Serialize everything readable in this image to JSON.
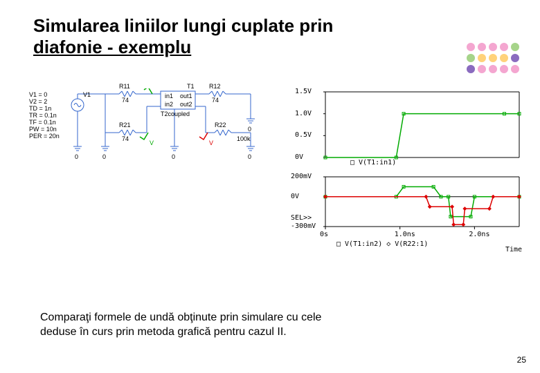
{
  "title_line1": "Simularea liniilor lungi cuplate prin",
  "title_line2": "diafonie - exemplu",
  "dots_colors": [
    "#f4a6d0",
    "#f4a6d0",
    "#f4a6d0",
    "#f4a6d0",
    "#a6d48a",
    "#a6d48a",
    "#ffd27a",
    "#ffd27a",
    "#ffd27a",
    "#8a6bbf",
    "#8a6bbf",
    "#f4a6d0",
    "#f4a6d0",
    "#f4a6d0",
    "#f4a6d0"
  ],
  "dots_grid": {
    "cols": 5,
    "rows": 3,
    "r": 6,
    "gap": 16
  },
  "circuit": {
    "params": [
      "V1 = 0",
      "V2 = 2",
      "TD = 1n",
      "TR = 0.1n",
      "TF = 0.1n",
      "PW = 10n",
      "PER = 20n"
    ],
    "source_label": "V1",
    "r_top_left": {
      "name": "R11",
      "val": "74"
    },
    "r_top_right": {
      "name": "R12",
      "val": "74"
    },
    "r_bot_left": {
      "name": "R21",
      "val": "74"
    },
    "r_bot_right": {
      "name": "R22",
      "val": "100k"
    },
    "tline": {
      "tl": "in1",
      "tr": "out1",
      "bl": "in2",
      "br": "out2",
      "name": "T2coupled",
      "lab": "T1"
    },
    "gnd": "0",
    "probe_in": "V",
    "probe_out": "V",
    "res_color": "#36c"
  },
  "waveforms": {
    "top": {
      "yticks": [
        "1.5V",
        "1.0V",
        "0.5V",
        "0V"
      ],
      "trace_label": "V(T1:in1)",
      "points": [
        [
          0,
          0
        ],
        [
          0.95,
          0
        ],
        [
          1.05,
          1.0
        ],
        [
          2.4,
          1.0
        ],
        [
          2.6,
          1.0
        ]
      ],
      "ylim": [
        0,
        1.5
      ],
      "color": "#0a0"
    },
    "bottom": {
      "yticks": [
        "200mV",
        "0V",
        "-300mV"
      ],
      "sel": "SEL>>",
      "trace_labels": [
        "V(T1:in2)",
        "V(R22:1)"
      ],
      "series1": [
        [
          0,
          0
        ],
        [
          0.95,
          0
        ],
        [
          1.05,
          0.1
        ],
        [
          1.45,
          0.1
        ],
        [
          1.55,
          0
        ],
        [
          1.65,
          0
        ],
        [
          1.68,
          -0.2
        ],
        [
          1.95,
          -0.2
        ],
        [
          2.0,
          0
        ],
        [
          2.6,
          0
        ]
      ],
      "series2": [
        [
          0,
          0
        ],
        [
          1.35,
          0
        ],
        [
          1.4,
          -0.1
        ],
        [
          1.7,
          -0.1
        ],
        [
          1.72,
          -0.28
        ],
        [
          1.85,
          -0.28
        ],
        [
          1.87,
          -0.12
        ],
        [
          2.2,
          -0.12
        ],
        [
          2.25,
          0
        ],
        [
          2.6,
          0
        ]
      ],
      "ylim": [
        -0.3,
        0.2
      ],
      "colors": [
        "#0a0",
        "#d00"
      ]
    },
    "xticks": [
      "0s",
      "1.0ns",
      "2.0ns"
    ],
    "xlabel": "Time",
    "xlim": [
      0,
      2.6
    ]
  },
  "footer_line1": "Comparaţi formele de undă obţinute prin simulare cu cele",
  "footer_line2": "deduse în curs prin metoda grafică pentru cazul II.",
  "page_number": "25"
}
